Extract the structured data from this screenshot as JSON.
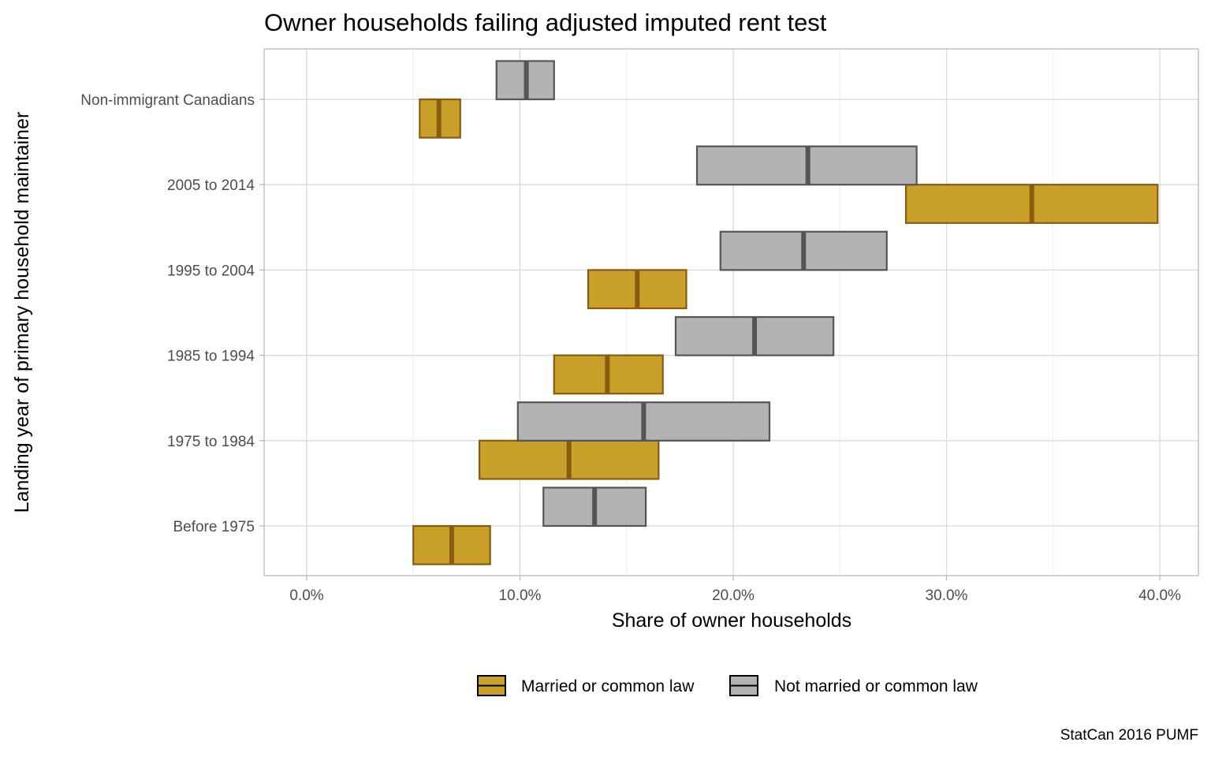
{
  "chart_data": {
    "type": "crossbar",
    "title": "Owner households failing adjusted imputed rent test",
    "xlabel": "Share of owner households",
    "ylabel": "Landing year of primary household maintainer",
    "caption": "StatCan 2016 PUMF",
    "categories": [
      "Before 1975",
      "1975 to 1984",
      "1985 to 1994",
      "1995 to 2004",
      "2005 to 2014",
      "Non-immigrant Canadians"
    ],
    "x_ticks": [
      0,
      10,
      20,
      30,
      40
    ],
    "x_tick_labels": [
      "0.0%",
      "10.0%",
      "20.0%",
      "30.0%",
      "40.0%"
    ],
    "xlim": [
      -2,
      41
    ],
    "grid": true,
    "legend_position": "bottom",
    "series": [
      {
        "name": "Married or common law",
        "fill": "#c9a02a",
        "stroke": "#8b5a0f",
        "values": [
          {
            "category": "Before 1975",
            "low": 5.0,
            "mid": 6.8,
            "high": 8.6
          },
          {
            "category": "1975 to 1984",
            "low": 8.1,
            "mid": 12.3,
            "high": 16.5
          },
          {
            "category": "1985 to 1994",
            "low": 11.6,
            "mid": 14.1,
            "high": 16.7
          },
          {
            "category": "1995 to 2004",
            "low": 13.2,
            "mid": 15.5,
            "high": 17.8
          },
          {
            "category": "2005 to 2014",
            "low": 28.1,
            "mid": 34.0,
            "high": 39.9
          },
          {
            "category": "Non-immigrant Canadians",
            "low": 5.3,
            "mid": 6.2,
            "high": 7.2
          }
        ]
      },
      {
        "name": "Not married or common law",
        "fill": "#b3b3b3",
        "stroke": "#555555",
        "values": [
          {
            "category": "Before 1975",
            "low": 11.1,
            "mid": 13.5,
            "high": 15.9
          },
          {
            "category": "1975 to 1984",
            "low": 9.9,
            "mid": 15.8,
            "high": 21.7
          },
          {
            "category": "1985 to 1994",
            "low": 17.3,
            "mid": 21.0,
            "high": 24.7
          },
          {
            "category": "1995 to 2004",
            "low": 19.4,
            "mid": 23.3,
            "high": 27.2
          },
          {
            "category": "2005 to 2014",
            "low": 18.3,
            "mid": 23.5,
            "high": 28.6
          },
          {
            "category": "Non-immigrant Canadians",
            "low": 8.9,
            "mid": 10.3,
            "high": 11.6
          }
        ]
      }
    ]
  }
}
